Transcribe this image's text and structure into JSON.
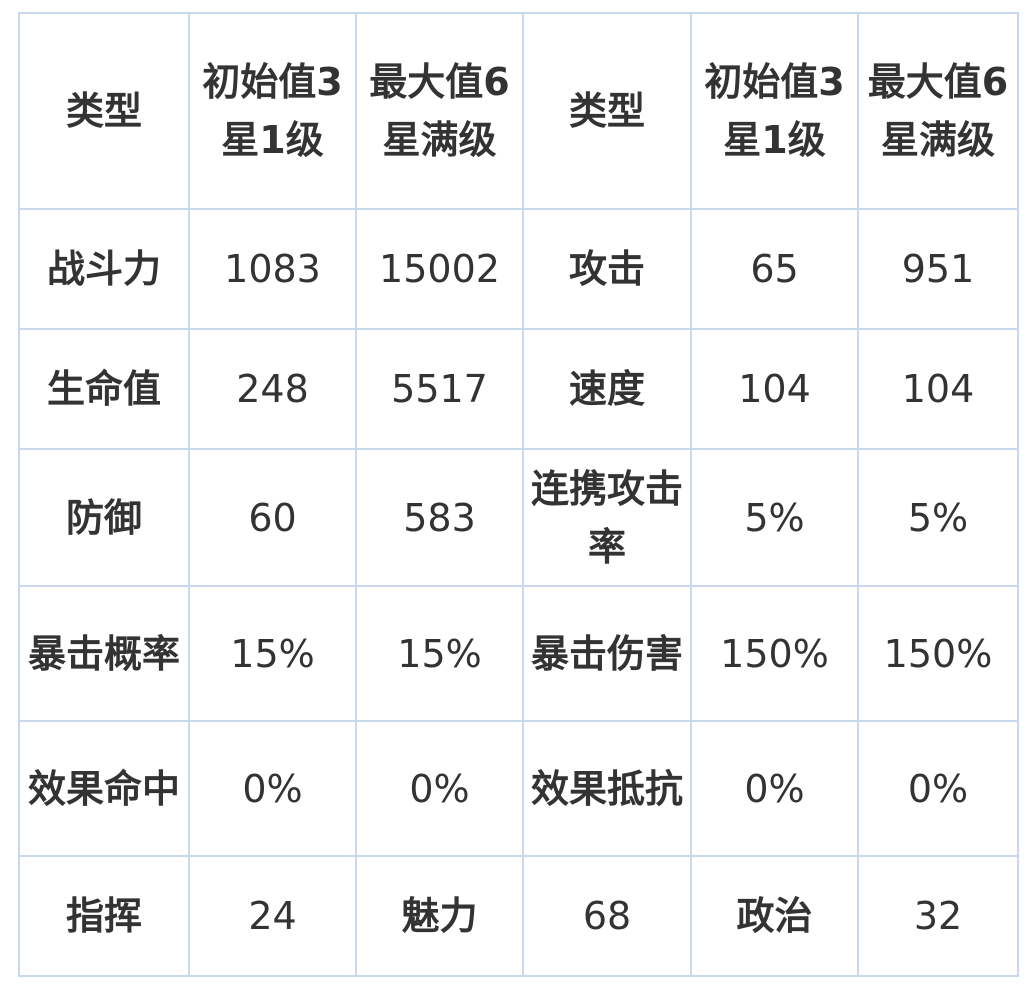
{
  "colors": {
    "border": "#c9d7ef",
    "text": "#333333",
    "background": "#ffffff"
  },
  "header": [
    "类型",
    "初始值3星1级",
    "最大值6星满级",
    "类型",
    "初始值3星1级",
    "最大值6星满级"
  ],
  "rows": [
    [
      "战斗力",
      "1083",
      "15002",
      "攻击",
      "65",
      "951"
    ],
    [
      "生命值",
      "248",
      "5517",
      "速度",
      "104",
      "104"
    ],
    [
      "防御",
      "60",
      "583",
      "连携攻击率",
      "5%",
      "5%"
    ],
    [
      "暴击概率",
      "15%",
      "15%",
      "暴击伤害",
      "150%",
      "150%"
    ],
    [
      "效果命中",
      "0%",
      "0%",
      "效果抵抗",
      "0%",
      "0%"
    ],
    [
      "指挥",
      "24",
      "魅力",
      "68",
      "政治",
      "32"
    ]
  ]
}
